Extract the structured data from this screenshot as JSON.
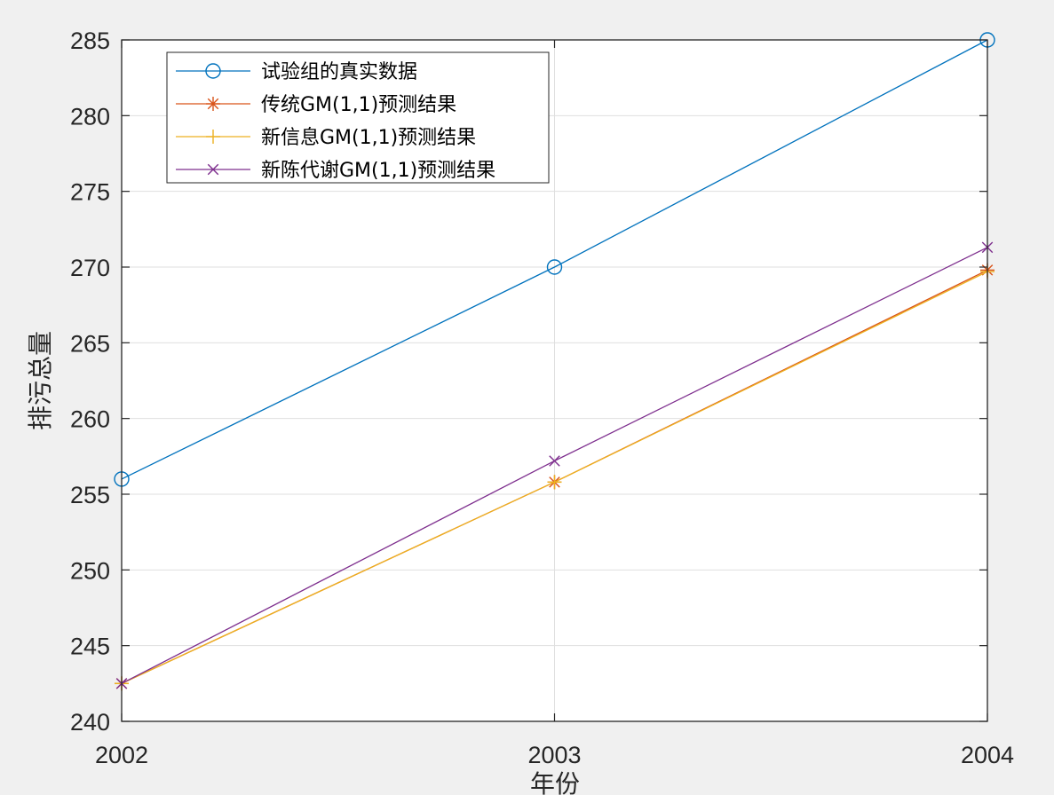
{
  "chart_data": {
    "type": "line",
    "xlabel": "年份",
    "ylabel": "排污总量",
    "x": [
      2002,
      2003,
      2004
    ],
    "xlim": [
      2002,
      2004
    ],
    "ylim": [
      240,
      285
    ],
    "x_ticks": [
      2002,
      2003,
      2004
    ],
    "y_ticks": [
      240,
      245,
      250,
      255,
      260,
      265,
      270,
      275,
      280,
      285
    ],
    "grid": true,
    "legend_location": "top-left",
    "series": [
      {
        "name": "试验组的真实数据",
        "values": [
          256,
          270,
          285
        ],
        "color": "#0072BD",
        "marker": "circle"
      },
      {
        "name": "传统GM(1,1)预测结果",
        "values": [
          242.5,
          255.8,
          269.8
        ],
        "color": "#D95319",
        "marker": "asterisk"
      },
      {
        "name": "新信息GM(1,1)预测结果",
        "values": [
          242.5,
          255.8,
          269.7
        ],
        "color": "#EDB120",
        "marker": "plus"
      },
      {
        "name": "新陈代谢GM(1,1)预测结果",
        "values": [
          242.5,
          257.2,
          271.3
        ],
        "color": "#7E2F8E",
        "marker": "x"
      }
    ]
  }
}
